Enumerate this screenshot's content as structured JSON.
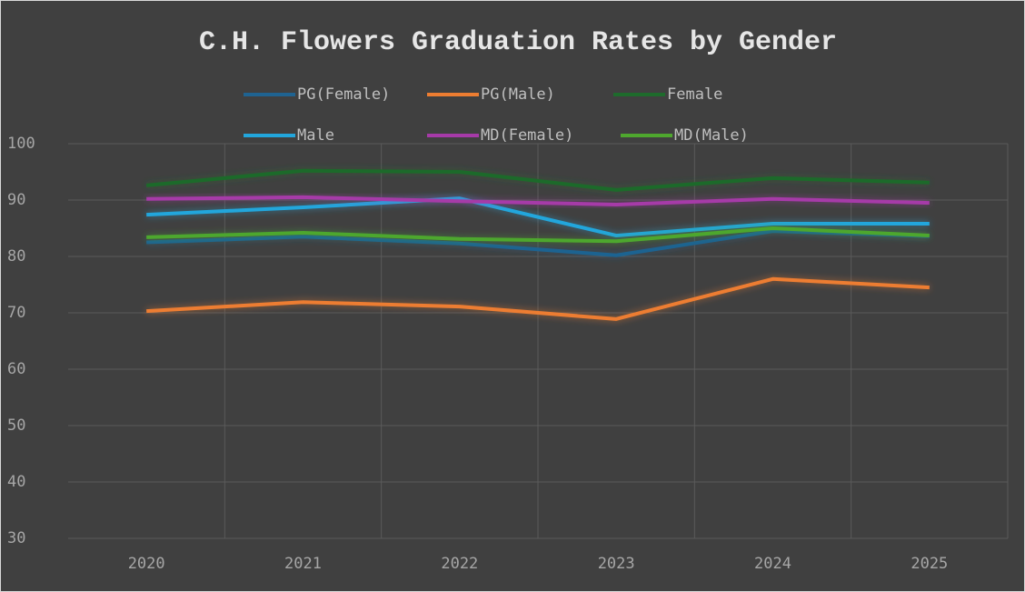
{
  "chart_data": {
    "type": "line",
    "title": "C.H. Flowers Graduation Rates by Gender",
    "categories": [
      "2020",
      "2021",
      "2022",
      "2023",
      "2024",
      "2025"
    ],
    "series": [
      {
        "name": "PG(Female)",
        "color": "#1f6391",
        "values": [
          82.5,
          83.5,
          82.3,
          80.2,
          84.5,
          83.6
        ]
      },
      {
        "name": "PG(Male)",
        "color": "#ed7d31",
        "values": [
          70.3,
          71.9,
          71.1,
          68.9,
          76,
          74.5
        ]
      },
      {
        "name": "Female",
        "color": "#1e6b2c",
        "values": [
          92.6,
          95.2,
          95,
          91.8,
          93.9,
          93.1
        ]
      },
      {
        "name": "Male",
        "color": "#22a6dc",
        "values": [
          87.4,
          88.7,
          90.3,
          83.7,
          85.8,
          85.8
        ]
      },
      {
        "name": "MD(Female)",
        "color": "#a63aa8",
        "values": [
          90.2,
          90.5,
          89.8,
          89.2,
          90.2,
          89.5
        ]
      },
      {
        "name": "MD(Male)",
        "color": "#4ea72e",
        "values": [
          83.4,
          84.2,
          83.1,
          82.7,
          85,
          83.7
        ]
      }
    ],
    "ylim": [
      30,
      100
    ],
    "yticks": [
      30,
      40,
      50,
      60,
      70,
      80,
      90,
      100
    ],
    "grid": true,
    "legend": "top"
  }
}
